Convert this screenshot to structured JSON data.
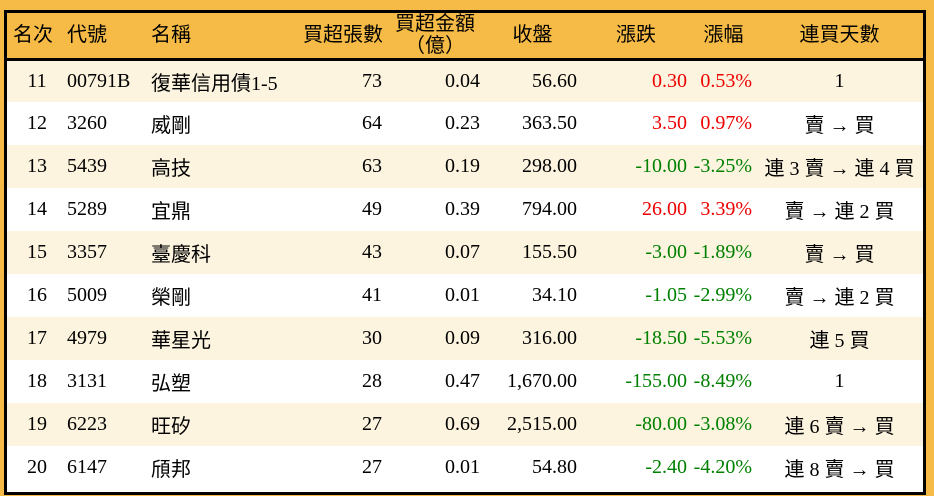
{
  "chart_data": {
    "type": "table",
    "columns": [
      {
        "key": "rank",
        "label": "名次"
      },
      {
        "key": "code",
        "label": "代號"
      },
      {
        "key": "name",
        "label": "名稱"
      },
      {
        "key": "volume",
        "label": "買超張數"
      },
      {
        "key": "amount",
        "label": "買超金額",
        "label2": "（億）"
      },
      {
        "key": "close",
        "label": "收盤"
      },
      {
        "key": "change",
        "label": "漲跌"
      },
      {
        "key": "change_pct",
        "label": "漲幅"
      },
      {
        "key": "streak",
        "label": "連買天數"
      }
    ],
    "rows": [
      {
        "rank": "11",
        "code": "00791B",
        "name": "復華信用債1-5",
        "volume": "73",
        "amount": "0.04",
        "close": "56.60",
        "change": "0.30",
        "change_pct": "0.53%",
        "trend": "up",
        "streak": "1"
      },
      {
        "rank": "12",
        "code": "3260",
        "name": "威剛",
        "volume": "64",
        "amount": "0.23",
        "close": "363.50",
        "change": "3.50",
        "change_pct": "0.97%",
        "trend": "up",
        "streak": "賣 → 買"
      },
      {
        "rank": "13",
        "code": "5439",
        "name": "高技",
        "volume": "63",
        "amount": "0.19",
        "close": "298.00",
        "change": "-10.00",
        "change_pct": "-3.25%",
        "trend": "down",
        "streak": "連 3 賣 → 連 4 買"
      },
      {
        "rank": "14",
        "code": "5289",
        "name": "宜鼎",
        "volume": "49",
        "amount": "0.39",
        "close": "794.00",
        "change": "26.00",
        "change_pct": "3.39%",
        "trend": "up",
        "streak": "賣 → 連 2 買"
      },
      {
        "rank": "15",
        "code": "3357",
        "name": "臺慶科",
        "volume": "43",
        "amount": "0.07",
        "close": "155.50",
        "change": "-3.00",
        "change_pct": "-1.89%",
        "trend": "down",
        "streak": "賣 → 買"
      },
      {
        "rank": "16",
        "code": "5009",
        "name": "榮剛",
        "volume": "41",
        "amount": "0.01",
        "close": "34.10",
        "change": "-1.05",
        "change_pct": "-2.99%",
        "trend": "down",
        "streak": "賣 → 連 2 買"
      },
      {
        "rank": "17",
        "code": "4979",
        "name": "華星光",
        "volume": "30",
        "amount": "0.09",
        "close": "316.00",
        "change": "-18.50",
        "change_pct": "-5.53%",
        "trend": "down",
        "streak": "連 5 買"
      },
      {
        "rank": "18",
        "code": "3131",
        "name": "弘塑",
        "volume": "28",
        "amount": "0.47",
        "close": "1,670.00",
        "change": "-155.00",
        "change_pct": "-8.49%",
        "trend": "down",
        "streak": "1"
      },
      {
        "rank": "19",
        "code": "6223",
        "name": "旺矽",
        "volume": "27",
        "amount": "0.69",
        "close": "2,515.00",
        "change": "-80.00",
        "change_pct": "-3.08%",
        "trend": "down",
        "streak": "連 6 賣 → 買"
      },
      {
        "rank": "20",
        "code": "6147",
        "name": "頎邦",
        "volume": "27",
        "amount": "0.01",
        "close": "54.80",
        "change": "-2.40",
        "change_pct": "-4.20%",
        "trend": "down",
        "streak": "連 8 賣 → 買"
      }
    ],
    "colors": {
      "page_bg": "#F6BB46",
      "header_bg": "#F6BB46",
      "row_alt_bg": "#FCF4DF",
      "row_bg": "#FFFFFF",
      "up": "#EE0000",
      "down": "#008000",
      "border": "#000000",
      "text": "#000000"
    },
    "legend_position": "none",
    "grid": false
  }
}
